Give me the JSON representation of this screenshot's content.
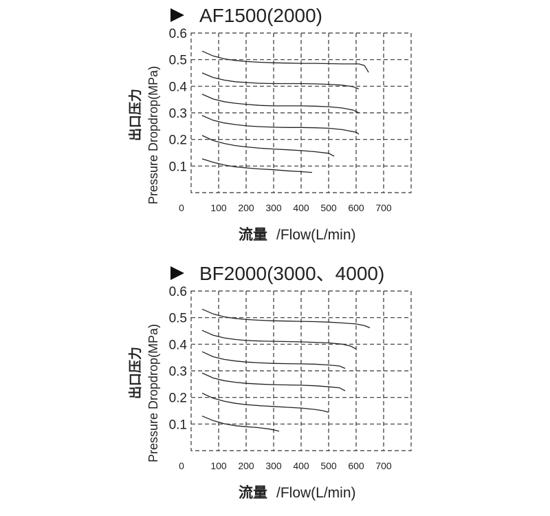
{
  "chart_data": [
    {
      "type": "line",
      "title": "AF1500(2000)",
      "ylabel_cn": "出口压力",
      "ylabel_en": "Pressure Dropdrop(MPa)",
      "xlabel_cn": "流量",
      "xlabel_en": "/Flow(L/min)",
      "xlim": [
        0,
        800
      ],
      "ylim": [
        0.0,
        0.6
      ],
      "x_ticks": [
        "0",
        "100",
        "200",
        "300",
        "400",
        "500",
        "600",
        "700"
      ],
      "y_ticks": [
        "0.6",
        "0.5",
        "0.4",
        "0.3",
        "0.2",
        "0.1"
      ],
      "grid": true,
      "series": [
        {
          "points": [
            [
              40,
              0.127
            ],
            [
              80,
              0.114
            ],
            [
              120,
              0.104
            ],
            [
              160,
              0.097
            ],
            [
              200,
              0.093
            ],
            [
              250,
              0.089
            ],
            [
              300,
              0.086
            ],
            [
              350,
              0.082
            ],
            [
              400,
              0.079
            ],
            [
              440,
              0.076
            ]
          ]
        },
        {
          "points": [
            [
              40,
              0.215
            ],
            [
              80,
              0.196
            ],
            [
              120,
              0.185
            ],
            [
              160,
              0.177
            ],
            [
              200,
              0.172
            ],
            [
              250,
              0.167
            ],
            [
              300,
              0.164
            ],
            [
              350,
              0.161
            ],
            [
              400,
              0.158
            ],
            [
              450,
              0.154
            ],
            [
              500,
              0.148
            ],
            [
              520,
              0.137
            ]
          ]
        },
        {
          "points": [
            [
              40,
              0.29
            ],
            [
              80,
              0.272
            ],
            [
              120,
              0.262
            ],
            [
              160,
              0.256
            ],
            [
              200,
              0.251
            ],
            [
              250,
              0.248
            ],
            [
              300,
              0.246
            ],
            [
              350,
              0.245
            ],
            [
              400,
              0.245
            ],
            [
              450,
              0.244
            ],
            [
              500,
              0.242
            ],
            [
              550,
              0.237
            ],
            [
              600,
              0.227
            ],
            [
              610,
              0.22
            ]
          ]
        },
        {
          "points": [
            [
              40,
              0.37
            ],
            [
              80,
              0.352
            ],
            [
              120,
              0.342
            ],
            [
              160,
              0.336
            ],
            [
              200,
              0.332
            ],
            [
              250,
              0.328
            ],
            [
              300,
              0.326
            ],
            [
              350,
              0.326
            ],
            [
              400,
              0.326
            ],
            [
              450,
              0.325
            ],
            [
              500,
              0.323
            ],
            [
              550,
              0.318
            ],
            [
              590,
              0.31
            ],
            [
              610,
              0.3
            ]
          ]
        },
        {
          "points": [
            [
              40,
              0.45
            ],
            [
              80,
              0.433
            ],
            [
              120,
              0.423
            ],
            [
              160,
              0.417
            ],
            [
              200,
              0.414
            ],
            [
              250,
              0.411
            ],
            [
              300,
              0.41
            ],
            [
              350,
              0.41
            ],
            [
              400,
              0.41
            ],
            [
              450,
              0.409
            ],
            [
              500,
              0.407
            ],
            [
              550,
              0.404
            ],
            [
              590,
              0.398
            ],
            [
              610,
              0.39
            ]
          ]
        },
        {
          "points": [
            [
              40,
              0.532
            ],
            [
              80,
              0.514
            ],
            [
              120,
              0.503
            ],
            [
              160,
              0.497
            ],
            [
              200,
              0.493
            ],
            [
              250,
              0.49
            ],
            [
              300,
              0.488
            ],
            [
              350,
              0.487
            ],
            [
              400,
              0.486
            ],
            [
              450,
              0.486
            ],
            [
              500,
              0.485
            ],
            [
              550,
              0.484
            ],
            [
              610,
              0.484
            ],
            [
              630,
              0.478
            ],
            [
              640,
              0.462
            ],
            [
              645,
              0.452
            ]
          ]
        }
      ]
    },
    {
      "type": "line",
      "title": "BF2000(3000、4000)",
      "ylabel_cn": "出口压力",
      "ylabel_en": "Pressure Dropdrop(MPa)",
      "xlabel_cn": "流量",
      "xlabel_en": "/Flow(L/min)",
      "xlim": [
        0,
        800
      ],
      "ylim": [
        0.0,
        0.6
      ],
      "x_ticks": [
        "0",
        "100",
        "200",
        "300",
        "400",
        "500",
        "600",
        "700"
      ],
      "y_ticks": [
        "0.6",
        "0.5",
        "0.4",
        "0.3",
        "0.2",
        "0.1"
      ],
      "grid": true,
      "series": [
        {
          "points": [
            [
              40,
              0.13
            ],
            [
              80,
              0.113
            ],
            [
              120,
              0.101
            ],
            [
              160,
              0.094
            ],
            [
              200,
              0.09
            ],
            [
              240,
              0.087
            ],
            [
              280,
              0.082
            ],
            [
              300,
              0.078
            ],
            [
              320,
              0.073
            ]
          ]
        },
        {
          "points": [
            [
              40,
              0.216
            ],
            [
              80,
              0.197
            ],
            [
              120,
              0.186
            ],
            [
              160,
              0.178
            ],
            [
              200,
              0.173
            ],
            [
              250,
              0.169
            ],
            [
              300,
              0.166
            ],
            [
              350,
              0.163
            ],
            [
              400,
              0.16
            ],
            [
              450,
              0.155
            ],
            [
              480,
              0.15
            ],
            [
              500,
              0.144
            ]
          ]
        },
        {
          "points": [
            [
              40,
              0.292
            ],
            [
              80,
              0.273
            ],
            [
              120,
              0.263
            ],
            [
              160,
              0.257
            ],
            [
              200,
              0.253
            ],
            [
              250,
              0.25
            ],
            [
              300,
              0.248
            ],
            [
              350,
              0.247
            ],
            [
              400,
              0.246
            ],
            [
              450,
              0.244
            ],
            [
              500,
              0.24
            ],
            [
              540,
              0.236
            ],
            [
              560,
              0.225
            ]
          ]
        },
        {
          "points": [
            [
              40,
              0.372
            ],
            [
              80,
              0.353
            ],
            [
              120,
              0.343
            ],
            [
              160,
              0.337
            ],
            [
              200,
              0.333
            ],
            [
              250,
              0.33
            ],
            [
              300,
              0.328
            ],
            [
              350,
              0.327
            ],
            [
              400,
              0.326
            ],
            [
              450,
              0.325
            ],
            [
              500,
              0.322
            ],
            [
              540,
              0.318
            ],
            [
              560,
              0.309
            ]
          ]
        },
        {
          "points": [
            [
              40,
              0.452
            ],
            [
              80,
              0.434
            ],
            [
              120,
              0.424
            ],
            [
              160,
              0.418
            ],
            [
              200,
              0.414
            ],
            [
              250,
              0.412
            ],
            [
              300,
              0.411
            ],
            [
              350,
              0.41
            ],
            [
              400,
              0.409
            ],
            [
              450,
              0.407
            ],
            [
              500,
              0.405
            ],
            [
              550,
              0.4
            ],
            [
              580,
              0.393
            ],
            [
              600,
              0.382
            ]
          ]
        },
        {
          "points": [
            [
              40,
              0.532
            ],
            [
              80,
              0.514
            ],
            [
              120,
              0.503
            ],
            [
              160,
              0.497
            ],
            [
              200,
              0.493
            ],
            [
              250,
              0.49
            ],
            [
              300,
              0.488
            ],
            [
              350,
              0.487
            ],
            [
              400,
              0.486
            ],
            [
              450,
              0.485
            ],
            [
              500,
              0.483
            ],
            [
              550,
              0.48
            ],
            [
              600,
              0.476
            ],
            [
              630,
              0.47
            ],
            [
              650,
              0.462
            ]
          ]
        }
      ]
    }
  ]
}
